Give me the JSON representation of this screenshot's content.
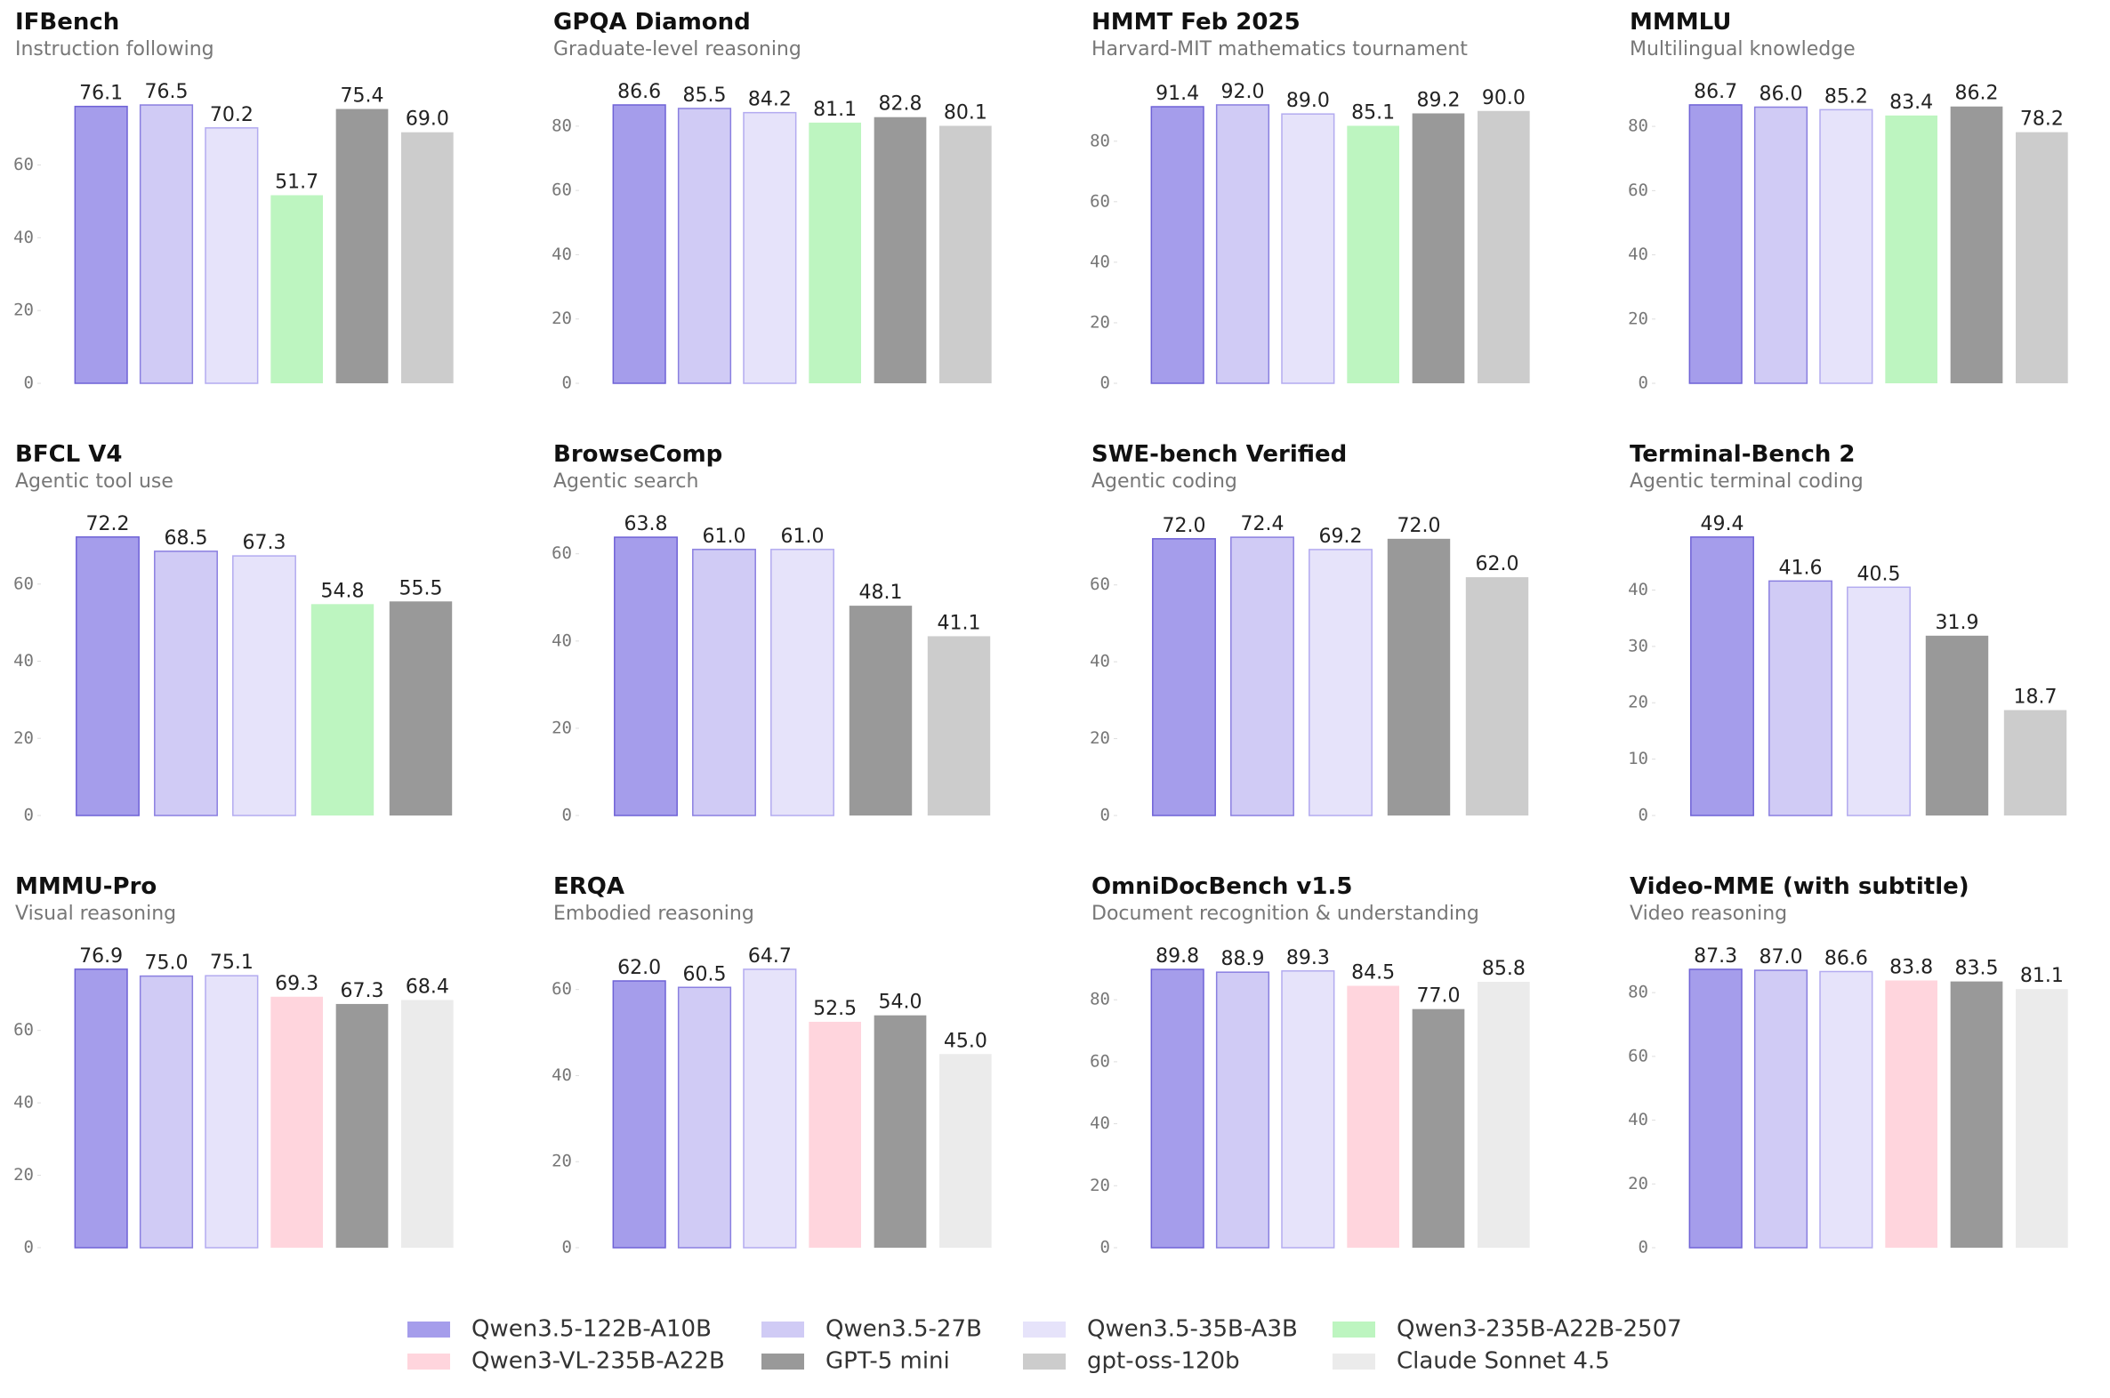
{
  "legend": [
    {
      "name": "Qwen3.5-122B-A10B",
      "color": "#a59deb",
      "edgecolor": "#6f62d6"
    },
    {
      "name": "Qwen3.5-27B",
      "color": "#d0cbf5",
      "edgecolor": "#8a7fe0"
    },
    {
      "name": "Qwen3.5-35B-A3B",
      "color": "#e6e3fa",
      "edgecolor": "#b3abf0"
    },
    {
      "name": "Qwen3-235B-A22B-2507",
      "color": "#bdf5c0"
    },
    {
      "name": "Qwen3-VL-235B-A22B",
      "color": "#ffd5dd"
    },
    {
      "name": "GPT-5 mini",
      "color": "#999999"
    },
    {
      "name": "gpt-oss-120b",
      "color": "#cccccc"
    },
    {
      "name": "Claude Sonnet 4.5",
      "color": "#ebebeb"
    }
  ],
  "chart_data": [
    {
      "type": "bar",
      "title": "IFBench",
      "subtitle": "Instruction following",
      "categories": [
        "Qwen3.5-122B-A10B",
        "Qwen3.5-27B",
        "Qwen3.5-35B-A3B",
        "Qwen3-235B-A22B-2507",
        "GPT-5 mini",
        "gpt-oss-120b"
      ],
      "values": [
        76.1,
        76.5,
        70.2,
        51.7,
        75.4,
        69.0
      ],
      "value_labels": [
        "76.1",
        "76.5",
        "70.2",
        "51.7",
        "75.4",
        "69.0"
      ],
      "ylim": [
        0,
        88
      ],
      "yticks": [
        0,
        20,
        40,
        60
      ]
    },
    {
      "type": "bar",
      "title": "GPQA Diamond",
      "subtitle": "Graduate-level reasoning",
      "categories": [
        "Qwen3.5-122B-A10B",
        "Qwen3.5-27B",
        "Qwen3.5-35B-A3B",
        "Qwen3-235B-A22B-2507",
        "GPT-5 mini",
        "gpt-oss-120b"
      ],
      "values": [
        86.6,
        85.5,
        84.2,
        81.1,
        82.8,
        80.1
      ],
      "value_labels": [
        "86.6",
        "85.5",
        "84.2",
        "81.1",
        "82.8",
        "80.1"
      ],
      "ylim": [
        0,
        99.6
      ],
      "yticks": [
        0,
        20,
        40,
        60,
        80
      ]
    },
    {
      "type": "bar",
      "title": "HMMT Feb 2025",
      "subtitle": "Harvard-MIT mathematics tournament",
      "categories": [
        "Qwen3.5-122B-A10B",
        "Qwen3.5-27B",
        "Qwen3.5-35B-A3B",
        "Qwen3-235B-A22B-2507",
        "GPT-5 mini",
        "gpt-oss-120b"
      ],
      "values": [
        91.4,
        92.0,
        89.0,
        85.1,
        89.2,
        90.0
      ],
      "value_labels": [
        "91.4",
        "92.0",
        "89.0",
        "85.1",
        "89.2",
        "90.0"
      ],
      "ylim": [
        0,
        105.8
      ],
      "yticks": [
        0,
        20,
        40,
        60,
        80
      ]
    },
    {
      "type": "bar",
      "title": "MMMLU",
      "subtitle": "Multilingual knowledge",
      "categories": [
        "Qwen3.5-122B-A10B",
        "Qwen3.5-27B",
        "Qwen3.5-35B-A3B",
        "Qwen3-235B-A22B-2507",
        "GPT-5 mini",
        "gpt-oss-120b"
      ],
      "values": [
        86.7,
        86.0,
        85.2,
        83.4,
        86.2,
        78.2
      ],
      "value_labels": [
        "86.7",
        "86.0",
        "85.2",
        "83.4",
        "86.2",
        "78.2"
      ],
      "ylim": [
        0,
        99.7
      ],
      "yticks": [
        0,
        20,
        40,
        60,
        80
      ]
    },
    {
      "type": "bar",
      "title": "BFCL V4",
      "subtitle": "Agentic tool use",
      "categories": [
        "Qwen3.5-122B-A10B",
        "Qwen3.5-27B",
        "Qwen3.5-35B-A3B",
        "Qwen3-235B-A22B-2507",
        "GPT-5 mini"
      ],
      "values": [
        72.2,
        68.5,
        67.3,
        54.8,
        55.5
      ],
      "value_labels": [
        "72.2",
        "68.5",
        "67.3",
        "54.8",
        "55.5"
      ],
      "ylim": [
        0,
        83
      ],
      "yticks": [
        0,
        20,
        40,
        60
      ]
    },
    {
      "type": "bar",
      "title": "BrowseComp",
      "subtitle": "Agentic search",
      "categories": [
        "Qwen3.5-122B-A10B",
        "Qwen3.5-27B",
        "Qwen3.5-35B-A3B",
        "GPT-5 mini",
        "gpt-oss-120b"
      ],
      "values": [
        63.8,
        61.0,
        61.0,
        48.1,
        41.1
      ],
      "value_labels": [
        "63.8",
        "61.0",
        "61.0",
        "48.1",
        "41.1"
      ],
      "ylim": [
        0,
        73.4
      ],
      "yticks": [
        0,
        20,
        40,
        60
      ]
    },
    {
      "type": "bar",
      "title": "SWE-bench Verified",
      "subtitle": "Agentic coding",
      "categories": [
        "Qwen3.5-122B-A10B",
        "Qwen3.5-27B",
        "Qwen3.5-35B-A3B",
        "GPT-5 mini",
        "gpt-oss-120b"
      ],
      "values": [
        72.0,
        72.4,
        69.2,
        72.0,
        62.0
      ],
      "value_labels": [
        "72.0",
        "72.4",
        "69.2",
        "72.0",
        "62.0"
      ],
      "ylim": [
        0,
        83.3
      ],
      "yticks": [
        0,
        20,
        40,
        60
      ]
    },
    {
      "type": "bar",
      "title": "Terminal-Bench 2",
      "subtitle": "Agentic terminal coding",
      "categories": [
        "Qwen3.5-122B-A10B",
        "Qwen3.5-27B",
        "Qwen3.5-35B-A3B",
        "GPT-5 mini",
        "gpt-oss-120b"
      ],
      "values": [
        49.4,
        41.6,
        40.5,
        31.9,
        18.7
      ],
      "value_labels": [
        "49.4",
        "41.6",
        "40.5",
        "31.9",
        "18.7"
      ],
      "ylim": [
        0,
        56.8
      ],
      "yticks": [
        0,
        10,
        20,
        30,
        40
      ]
    },
    {
      "type": "bar",
      "title": "MMMU-Pro",
      "subtitle": "Visual reasoning",
      "categories": [
        "Qwen3.5-122B-A10B",
        "Qwen3.5-27B",
        "Qwen3.5-35B-A3B",
        "Qwen3-VL-235B-A22B",
        "GPT-5 mini",
        "Claude Sonnet 4.5"
      ],
      "values": [
        76.9,
        75.0,
        75.1,
        69.3,
        67.3,
        68.4
      ],
      "value_labels": [
        "76.9",
        "75.0",
        "75.1",
        "69.3",
        "67.3",
        "68.4"
      ],
      "ylim": [
        0,
        88.4
      ],
      "yticks": [
        0,
        20,
        40,
        60
      ]
    },
    {
      "type": "bar",
      "title": "ERQA",
      "subtitle": "Embodied reasoning",
      "categories": [
        "Qwen3.5-122B-A10B",
        "Qwen3.5-27B",
        "Qwen3.5-35B-A3B",
        "Qwen3-VL-235B-A22B",
        "GPT-5 mini",
        "Claude Sonnet 4.5"
      ],
      "values": [
        62.0,
        60.5,
        64.7,
        52.5,
        54.0,
        45.0
      ],
      "value_labels": [
        "62.0",
        "60.5",
        "64.7",
        "52.5",
        "54.0",
        "45.0"
      ],
      "ylim": [
        0,
        74.4
      ],
      "yticks": [
        0,
        20,
        40,
        60
      ]
    },
    {
      "type": "bar",
      "title": "OmniDocBench v1.5",
      "subtitle": "Document recognition & understanding",
      "categories": [
        "Qwen3.5-122B-A10B",
        "Qwen3.5-27B",
        "Qwen3.5-35B-A3B",
        "Qwen3-VL-235B-A22B",
        "GPT-5 mini",
        "Claude Sonnet 4.5"
      ],
      "values": [
        89.8,
        88.9,
        89.3,
        84.5,
        77.0,
        85.8
      ],
      "value_labels": [
        "89.8",
        "88.9",
        "89.3",
        "84.5",
        "77.0",
        "85.8"
      ],
      "ylim": [
        0,
        103.3
      ],
      "yticks": [
        0,
        20,
        40,
        60,
        80
      ]
    },
    {
      "type": "bar",
      "title": "Video-MME (with subtitle)",
      "subtitle": "Video reasoning",
      "categories": [
        "Qwen3.5-122B-A10B",
        "Qwen3.5-27B",
        "Qwen3.5-35B-A3B",
        "Qwen3-VL-235B-A22B",
        "GPT-5 mini",
        "Claude Sonnet 4.5"
      ],
      "values": [
        87.3,
        87.0,
        86.6,
        83.8,
        83.5,
        81.1
      ],
      "value_labels": [
        "87.3",
        "87.0",
        "86.6",
        "83.8",
        "83.5",
        "81.1"
      ],
      "ylim": [
        0,
        100.4
      ],
      "yticks": [
        0,
        20,
        40,
        60,
        80
      ]
    }
  ]
}
